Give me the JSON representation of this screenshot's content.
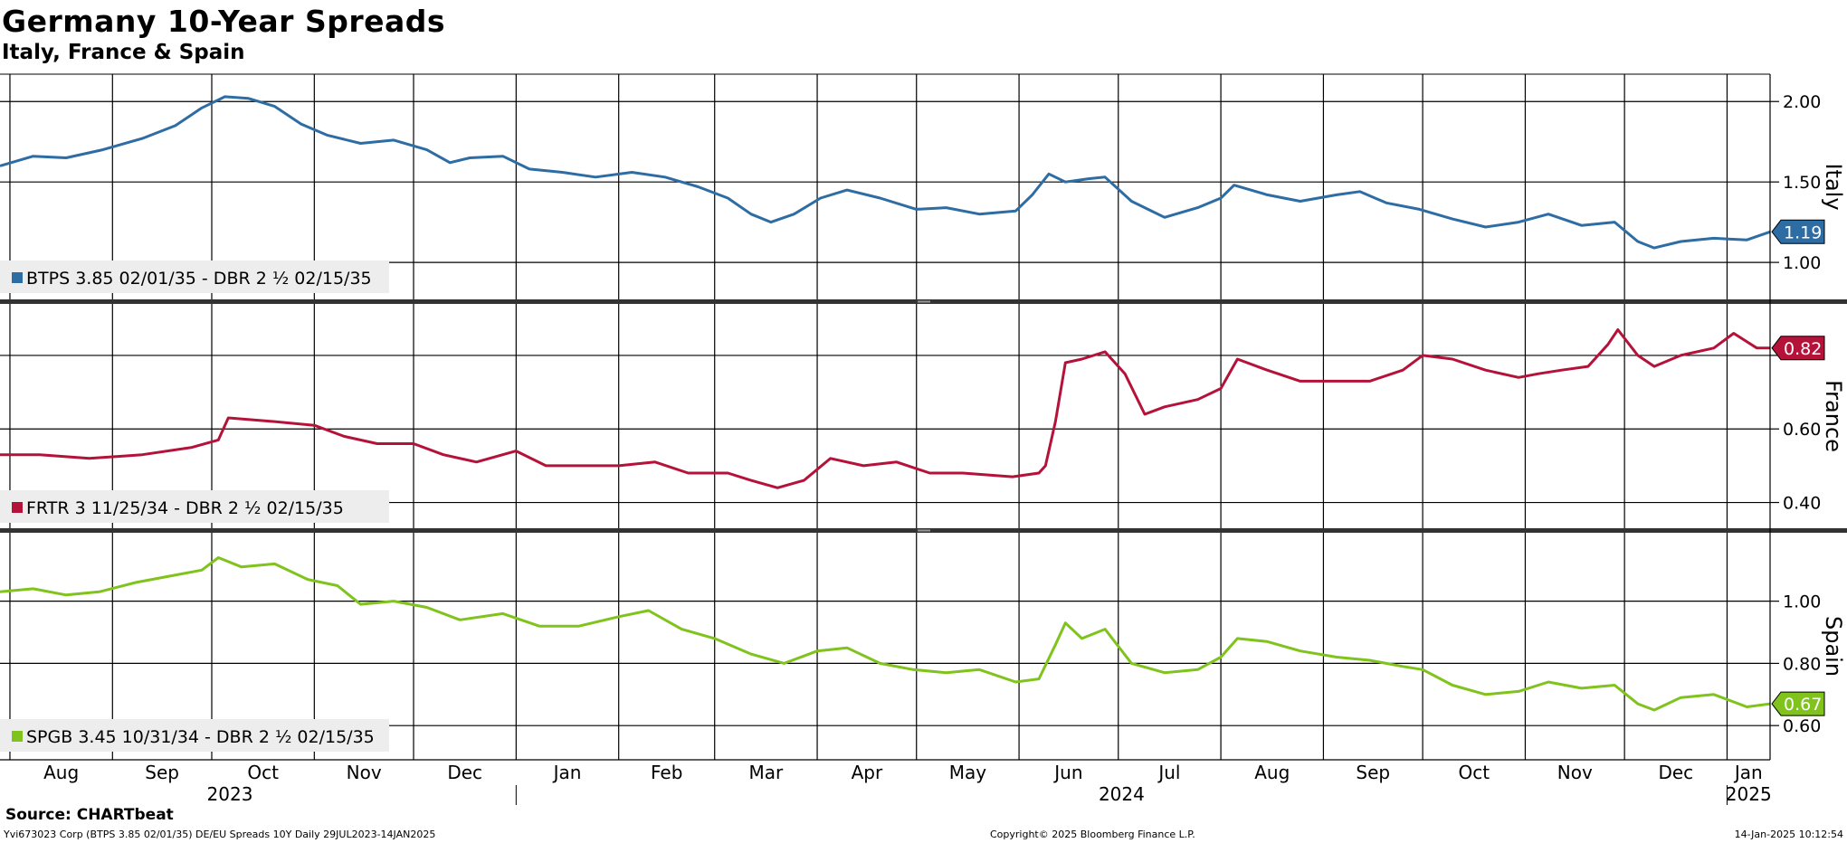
{
  "title": "Germany 10-Year Spreads",
  "subtitle": "Italy, France & Spain",
  "source": "Source: CHARTbeat",
  "footer": {
    "left": "Yvi673023 Corp (BTPS 3.85 02/01/35) DE/EU Spreads 10Y  Daily 29JUL2023-14JAN2025",
    "center": "Copyright© 2025 Bloomberg Finance L.P.",
    "right": "14-Jan-2025 10:12:54"
  },
  "colors": {
    "italy": "#2e6ca4",
    "france": "#b5123a",
    "spain": "#7fc31c"
  },
  "chart_data": {
    "type": "line",
    "x_axis": {
      "months": [
        "Aug",
        "Sep",
        "Oct",
        "Nov",
        "Dec",
        "Jan",
        "Feb",
        "Mar",
        "Apr",
        "May",
        "Jun",
        "Jul",
        "Aug",
        "Sep",
        "Oct",
        "Nov",
        "Dec",
        "Jan"
      ],
      "years": [
        "2023",
        "2024",
        "2025"
      ],
      "range": [
        "2023-07-29",
        "2025-01-14"
      ]
    },
    "panels": [
      {
        "key": "italy",
        "axis_title": "Italy",
        "legend": "BTPS 3.85 02/01/35 - DBR 2 ½ 02/15/35",
        "ylim": [
          0.77,
          2.17
        ],
        "yticks": [
          1.0,
          1.5,
          2.0
        ],
        "ytick_labels": [
          "1.00",
          "1.50",
          "2.00"
        ],
        "last_label": "1.19",
        "points": [
          [
            "2023-07-29",
            1.6
          ],
          [
            "2023-08-08",
            1.66
          ],
          [
            "2023-08-18",
            1.65
          ],
          [
            "2023-08-29",
            1.7
          ],
          [
            "2023-09-10",
            1.77
          ],
          [
            "2023-09-20",
            1.85
          ],
          [
            "2023-09-28",
            1.96
          ],
          [
            "2023-10-05",
            2.03
          ],
          [
            "2023-10-12",
            2.02
          ],
          [
            "2023-10-20",
            1.97
          ],
          [
            "2023-10-28",
            1.86
          ],
          [
            "2023-11-05",
            1.79
          ],
          [
            "2023-11-15",
            1.74
          ],
          [
            "2023-11-25",
            1.76
          ],
          [
            "2023-12-05",
            1.7
          ],
          [
            "2023-12-12",
            1.62
          ],
          [
            "2023-12-18",
            1.65
          ],
          [
            "2023-12-28",
            1.66
          ],
          [
            "2024-01-05",
            1.58
          ],
          [
            "2024-01-15",
            1.56
          ],
          [
            "2024-01-25",
            1.53
          ],
          [
            "2024-02-05",
            1.56
          ],
          [
            "2024-02-15",
            1.53
          ],
          [
            "2024-02-25",
            1.47
          ],
          [
            "2024-03-05",
            1.4
          ],
          [
            "2024-03-12",
            1.3
          ],
          [
            "2024-03-18",
            1.25
          ],
          [
            "2024-03-25",
            1.3
          ],
          [
            "2024-04-02",
            1.4
          ],
          [
            "2024-04-10",
            1.45
          ],
          [
            "2024-04-20",
            1.4
          ],
          [
            "2024-05-01",
            1.33
          ],
          [
            "2024-05-10",
            1.34
          ],
          [
            "2024-05-20",
            1.3
          ],
          [
            "2024-05-31",
            1.32
          ],
          [
            "2024-06-05",
            1.42
          ],
          [
            "2024-06-10",
            1.55
          ],
          [
            "2024-06-15",
            1.5
          ],
          [
            "2024-06-22",
            1.52
          ],
          [
            "2024-06-27",
            1.53
          ],
          [
            "2024-07-05",
            1.38
          ],
          [
            "2024-07-15",
            1.28
          ],
          [
            "2024-07-25",
            1.34
          ],
          [
            "2024-08-01",
            1.4
          ],
          [
            "2024-08-05",
            1.48
          ],
          [
            "2024-08-15",
            1.42
          ],
          [
            "2024-08-25",
            1.38
          ],
          [
            "2024-09-05",
            1.42
          ],
          [
            "2024-09-12",
            1.44
          ],
          [
            "2024-09-20",
            1.37
          ],
          [
            "2024-09-30",
            1.33
          ],
          [
            "2024-10-10",
            1.27
          ],
          [
            "2024-10-20",
            1.22
          ],
          [
            "2024-10-30",
            1.25
          ],
          [
            "2024-11-08",
            1.3
          ],
          [
            "2024-11-18",
            1.23
          ],
          [
            "2024-11-28",
            1.25
          ],
          [
            "2024-12-05",
            1.13
          ],
          [
            "2024-12-10",
            1.09
          ],
          [
            "2024-12-18",
            1.13
          ],
          [
            "2024-12-28",
            1.15
          ],
          [
            "2025-01-07",
            1.14
          ],
          [
            "2025-01-14",
            1.19
          ]
        ]
      },
      {
        "key": "france",
        "axis_title": "France",
        "legend": "FRTR 3 11/25/34 - DBR 2 ½ 02/15/35",
        "ylim": [
          0.33,
          0.94
        ],
        "yticks": [
          0.4,
          0.6,
          0.8
        ],
        "ytick_labels": [
          "0.40",
          "0.60",
          ""
        ],
        "last_label": "0.82",
        "points": [
          [
            "2023-07-29",
            0.53
          ],
          [
            "2023-08-10",
            0.53
          ],
          [
            "2023-08-25",
            0.52
          ],
          [
            "2023-09-10",
            0.53
          ],
          [
            "2023-09-25",
            0.55
          ],
          [
            "2023-10-03",
            0.57
          ],
          [
            "2023-10-06",
            0.63
          ],
          [
            "2023-10-20",
            0.62
          ],
          [
            "2023-11-01",
            0.61
          ],
          [
            "2023-11-10",
            0.58
          ],
          [
            "2023-11-20",
            0.56
          ],
          [
            "2023-12-01",
            0.56
          ],
          [
            "2023-12-10",
            0.53
          ],
          [
            "2023-12-20",
            0.51
          ],
          [
            "2024-01-01",
            0.54
          ],
          [
            "2024-01-10",
            0.5
          ],
          [
            "2024-01-20",
            0.5
          ],
          [
            "2024-02-01",
            0.5
          ],
          [
            "2024-02-12",
            0.51
          ],
          [
            "2024-02-22",
            0.48
          ],
          [
            "2024-03-05",
            0.48
          ],
          [
            "2024-03-12",
            0.46
          ],
          [
            "2024-03-20",
            0.44
          ],
          [
            "2024-03-28",
            0.46
          ],
          [
            "2024-04-05",
            0.52
          ],
          [
            "2024-04-15",
            0.5
          ],
          [
            "2024-04-25",
            0.51
          ],
          [
            "2024-05-05",
            0.48
          ],
          [
            "2024-05-15",
            0.48
          ],
          [
            "2024-05-30",
            0.47
          ],
          [
            "2024-06-07",
            0.48
          ],
          [
            "2024-06-09",
            0.5
          ],
          [
            "2024-06-12",
            0.62
          ],
          [
            "2024-06-15",
            0.78
          ],
          [
            "2024-06-20",
            0.79
          ],
          [
            "2024-06-27",
            0.81
          ],
          [
            "2024-07-03",
            0.75
          ],
          [
            "2024-07-09",
            0.64
          ],
          [
            "2024-07-15",
            0.66
          ],
          [
            "2024-07-25",
            0.68
          ],
          [
            "2024-08-01",
            0.71
          ],
          [
            "2024-08-06",
            0.79
          ],
          [
            "2024-08-15",
            0.76
          ],
          [
            "2024-08-25",
            0.73
          ],
          [
            "2024-09-05",
            0.73
          ],
          [
            "2024-09-15",
            0.73
          ],
          [
            "2024-09-25",
            0.76
          ],
          [
            "2024-10-01",
            0.8
          ],
          [
            "2024-10-10",
            0.79
          ],
          [
            "2024-10-20",
            0.76
          ],
          [
            "2024-10-30",
            0.74
          ],
          [
            "2024-11-05",
            0.75
          ],
          [
            "2024-11-12",
            0.76
          ],
          [
            "2024-11-20",
            0.77
          ],
          [
            "2024-11-26",
            0.83
          ],
          [
            "2024-11-29",
            0.87
          ],
          [
            "2024-12-05",
            0.8
          ],
          [
            "2024-12-10",
            0.77
          ],
          [
            "2024-12-18",
            0.8
          ],
          [
            "2024-12-28",
            0.82
          ],
          [
            "2025-01-03",
            0.86
          ],
          [
            "2025-01-10",
            0.82
          ],
          [
            "2025-01-14",
            0.82
          ]
        ]
      },
      {
        "key": "spain",
        "axis_title": "Spain",
        "legend": "SPGB 3.45 10/31/34 - DBR 2 ½ 02/15/35",
        "ylim": [
          0.49,
          1.22
        ],
        "yticks": [
          0.6,
          0.8,
          1.0
        ],
        "ytick_labels": [
          "0.60",
          "0.80",
          "1.00"
        ],
        "last_label": "0.67",
        "points": [
          [
            "2023-07-29",
            1.03
          ],
          [
            "2023-08-08",
            1.04
          ],
          [
            "2023-08-18",
            1.02
          ],
          [
            "2023-08-28",
            1.03
          ],
          [
            "2023-09-08",
            1.06
          ],
          [
            "2023-09-18",
            1.08
          ],
          [
            "2023-09-28",
            1.1
          ],
          [
            "2023-10-03",
            1.14
          ],
          [
            "2023-10-10",
            1.11
          ],
          [
            "2023-10-20",
            1.12
          ],
          [
            "2023-10-30",
            1.07
          ],
          [
            "2023-11-08",
            1.05
          ],
          [
            "2023-11-15",
            0.99
          ],
          [
            "2023-11-25",
            1.0
          ],
          [
            "2023-12-05",
            0.98
          ],
          [
            "2023-12-15",
            0.94
          ],
          [
            "2023-12-28",
            0.96
          ],
          [
            "2024-01-08",
            0.92
          ],
          [
            "2024-01-20",
            0.92
          ],
          [
            "2024-02-01",
            0.95
          ],
          [
            "2024-02-10",
            0.97
          ],
          [
            "2024-02-20",
            0.91
          ],
          [
            "2024-03-01",
            0.88
          ],
          [
            "2024-03-12",
            0.83
          ],
          [
            "2024-03-22",
            0.8
          ],
          [
            "2024-04-01",
            0.84
          ],
          [
            "2024-04-10",
            0.85
          ],
          [
            "2024-04-20",
            0.8
          ],
          [
            "2024-04-30",
            0.78
          ],
          [
            "2024-05-10",
            0.77
          ],
          [
            "2024-05-20",
            0.78
          ],
          [
            "2024-05-31",
            0.74
          ],
          [
            "2024-06-07",
            0.75
          ],
          [
            "2024-06-12",
            0.86
          ],
          [
            "2024-06-15",
            0.93
          ],
          [
            "2024-06-20",
            0.88
          ],
          [
            "2024-06-27",
            0.91
          ],
          [
            "2024-07-05",
            0.8
          ],
          [
            "2024-07-15",
            0.77
          ],
          [
            "2024-07-25",
            0.78
          ],
          [
            "2024-08-01",
            0.82
          ],
          [
            "2024-08-06",
            0.88
          ],
          [
            "2024-08-15",
            0.87
          ],
          [
            "2024-08-25",
            0.84
          ],
          [
            "2024-09-05",
            0.82
          ],
          [
            "2024-09-15",
            0.81
          ],
          [
            "2024-09-25",
            0.79
          ],
          [
            "2024-10-01",
            0.78
          ],
          [
            "2024-10-10",
            0.73
          ],
          [
            "2024-10-20",
            0.7
          ],
          [
            "2024-10-30",
            0.71
          ],
          [
            "2024-11-08",
            0.74
          ],
          [
            "2024-11-18",
            0.72
          ],
          [
            "2024-11-28",
            0.73
          ],
          [
            "2024-12-05",
            0.67
          ],
          [
            "2024-12-10",
            0.65
          ],
          [
            "2024-12-18",
            0.69
          ],
          [
            "2024-12-28",
            0.7
          ],
          [
            "2025-01-07",
            0.66
          ],
          [
            "2025-01-14",
            0.67
          ]
        ]
      }
    ]
  }
}
